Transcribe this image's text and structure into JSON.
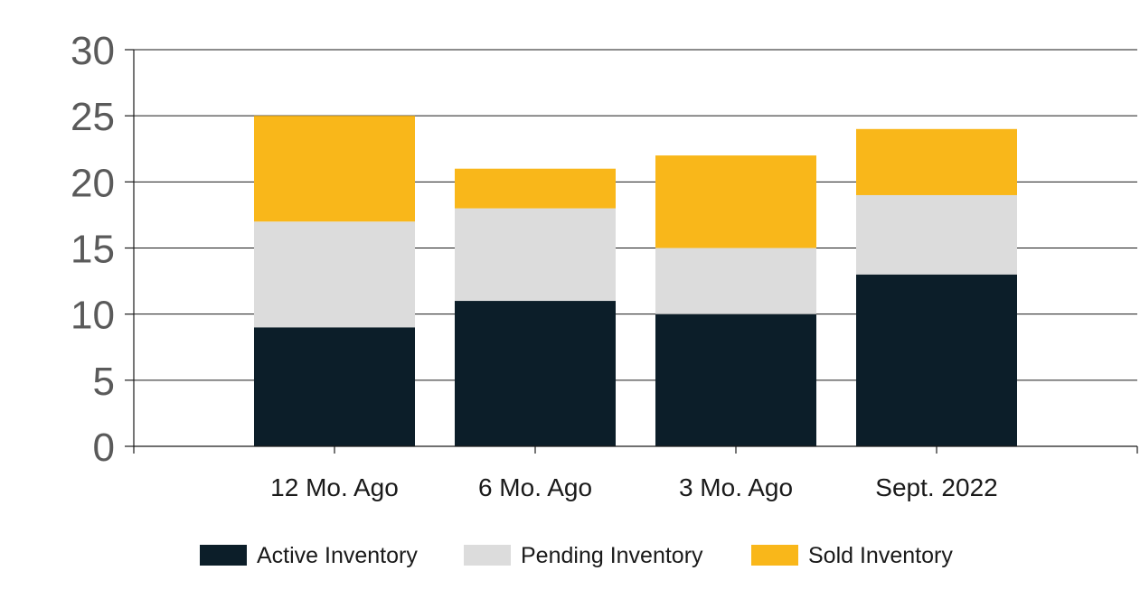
{
  "chart_data": {
    "type": "bar",
    "stacked": true,
    "categories": [
      "12 Mo. Ago",
      "6 Mo. Ago",
      "3 Mo. Ago",
      "Sept. 2022"
    ],
    "series": [
      {
        "name": "Active Inventory",
        "color": "#0c1e29",
        "values": [
          9,
          11,
          10,
          13
        ]
      },
      {
        "name": "Pending Inventory",
        "color": "#dcdcdc",
        "values": [
          8,
          7,
          5,
          6
        ]
      },
      {
        "name": "Sold Inventory",
        "color": "#f9b71a",
        "values": [
          8,
          3,
          7,
          5
        ]
      }
    ],
    "ylim": [
      0,
      30
    ],
    "yticks": [
      0,
      5,
      10,
      15,
      20,
      25,
      30
    ],
    "grid": true,
    "legend_position": "bottom"
  }
}
